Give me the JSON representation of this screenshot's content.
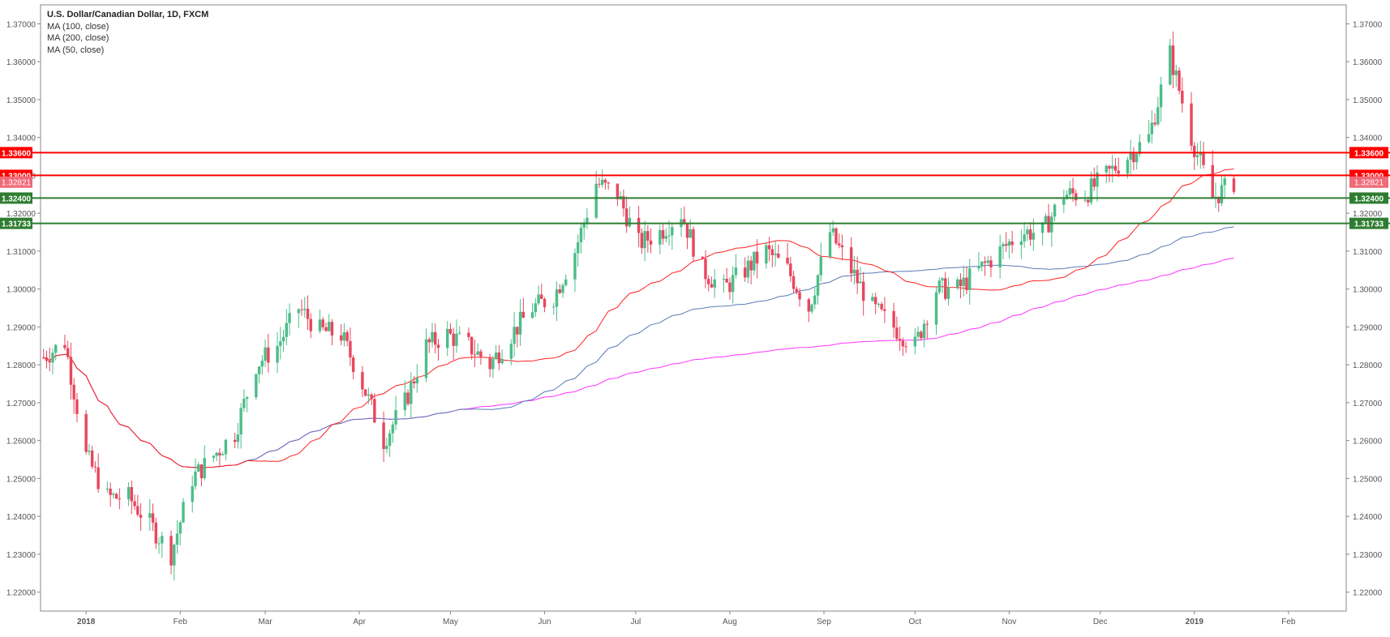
{
  "legend": {
    "title": "U.S. Dollar/Canadian Dollar, 1D, FXCM",
    "ma100": "MA (100, close)",
    "ma200": "MA (200, close)",
    "ma50": "MA (50, close)"
  },
  "colors": {
    "up": "#4dbd8a",
    "down": "#e8475e",
    "ma50": "#ff2020",
    "ma100": "#5a7ab8",
    "ma200": "#ff33ff",
    "resistance": "#ff0000",
    "support": "#2e7d32",
    "axis": "#555555"
  },
  "chart_data": {
    "type": "candlestick",
    "ylim": [
      1.215,
      1.375
    ],
    "y_ticks": [
      "1.22000",
      "1.23000",
      "1.24000",
      "1.25000",
      "1.26000",
      "1.27000",
      "1.28000",
      "1.29000",
      "1.30000",
      "1.31000",
      "1.32000",
      "1.33000",
      "1.34000",
      "1.35000",
      "1.36000",
      "1.37000"
    ],
    "x_tick_labels": [
      "2018",
      "Feb",
      "Mar",
      "Apr",
      "May",
      "Jun",
      "Jul",
      "Aug",
      "Sep",
      "Oct",
      "Nov",
      "Dec",
      "2019",
      "Feb"
    ],
    "x_tick_dates": [
      "2018-01-01",
      "2018-02-01",
      "2018-03-01",
      "2018-04-01",
      "2018-05-01",
      "2018-06-01",
      "2018-07-01",
      "2018-08-01",
      "2018-09-01",
      "2018-10-01",
      "2018-11-01",
      "2018-12-01",
      "2019-01-01",
      "2019-02-01"
    ],
    "x_range": [
      "2017-12-17",
      "2019-02-20"
    ],
    "horizontal_levels": [
      {
        "value": 1.336,
        "label": "1.33600",
        "color": "#ff0000"
      },
      {
        "value": 1.33,
        "label": "1.33000",
        "color": "#ff0000"
      },
      {
        "value": 1.324,
        "label": "1.32400",
        "color": "#2e7d32"
      },
      {
        "value": 1.31733,
        "label": "1.31733",
        "color": "#2e7d32"
      }
    ],
    "last_price": {
      "value": 1.32821,
      "label": "1.32821"
    },
    "closes": [
      {
        "date": "2017-12-18",
        "close": 1.282
      },
      {
        "date": "2017-12-25",
        "close": 1.286
      },
      {
        "date": "2018-01-01",
        "close": 1.256
      },
      {
        "date": "2018-01-08",
        "close": 1.245
      },
      {
        "date": "2018-01-15",
        "close": 1.245
      },
      {
        "date": "2018-01-22",
        "close": 1.238
      },
      {
        "date": "2018-01-29",
        "close": 1.23
      },
      {
        "date": "2018-02-05",
        "close": 1.25
      },
      {
        "date": "2018-02-12",
        "close": 1.256
      },
      {
        "date": "2018-02-19",
        "close": 1.262
      },
      {
        "date": "2018-02-26",
        "close": 1.28
      },
      {
        "date": "2018-03-05",
        "close": 1.285
      },
      {
        "date": "2018-03-12",
        "close": 1.295
      },
      {
        "date": "2018-03-19",
        "close": 1.289
      },
      {
        "date": "2018-03-26",
        "close": 1.288
      },
      {
        "date": "2018-04-02",
        "close": 1.275
      },
      {
        "date": "2018-04-09",
        "close": 1.26
      },
      {
        "date": "2018-04-16",
        "close": 1.27
      },
      {
        "date": "2018-04-23",
        "close": 1.285
      },
      {
        "date": "2018-04-30",
        "close": 1.288
      },
      {
        "date": "2018-05-07",
        "close": 1.285
      },
      {
        "date": "2018-05-14",
        "close": 1.28
      },
      {
        "date": "2018-05-21",
        "close": 1.288
      },
      {
        "date": "2018-05-28",
        "close": 1.295
      },
      {
        "date": "2018-06-04",
        "close": 1.298
      },
      {
        "date": "2018-06-11",
        "close": 1.31
      },
      {
        "date": "2018-06-18",
        "close": 1.328
      },
      {
        "date": "2018-06-25",
        "close": 1.325
      },
      {
        "date": "2018-07-02",
        "close": 1.312
      },
      {
        "date": "2018-07-09",
        "close": 1.315
      },
      {
        "date": "2018-07-16",
        "close": 1.32
      },
      {
        "date": "2018-07-23",
        "close": 1.305
      },
      {
        "date": "2018-07-30",
        "close": 1.3
      },
      {
        "date": "2018-08-06",
        "close": 1.305
      },
      {
        "date": "2018-08-13",
        "close": 1.31
      },
      {
        "date": "2018-08-20",
        "close": 1.305
      },
      {
        "date": "2018-08-27",
        "close": 1.295
      },
      {
        "date": "2018-09-03",
        "close": 1.315
      },
      {
        "date": "2018-09-10",
        "close": 1.305
      },
      {
        "date": "2018-09-17",
        "close": 1.295
      },
      {
        "date": "2018-09-24",
        "close": 1.29
      },
      {
        "date": "2018-10-01",
        "close": 1.285
      },
      {
        "date": "2018-10-08",
        "close": 1.3
      },
      {
        "date": "2018-10-15",
        "close": 1.3
      },
      {
        "date": "2018-10-22",
        "close": 1.305
      },
      {
        "date": "2018-10-29",
        "close": 1.31
      },
      {
        "date": "2018-11-05",
        "close": 1.315
      },
      {
        "date": "2018-11-12",
        "close": 1.315
      },
      {
        "date": "2018-11-19",
        "close": 1.325
      },
      {
        "date": "2018-11-26",
        "close": 1.325
      },
      {
        "date": "2018-12-03",
        "close": 1.33
      },
      {
        "date": "2018-12-10",
        "close": 1.335
      },
      {
        "date": "2018-12-17",
        "close": 1.34
      },
      {
        "date": "2018-12-24",
        "close": 1.362
      },
      {
        "date": "2018-12-31",
        "close": 1.34
      },
      {
        "date": "2019-01-07",
        "close": 1.324
      },
      {
        "date": "2019-01-14",
        "close": 1.3282
      }
    ]
  }
}
